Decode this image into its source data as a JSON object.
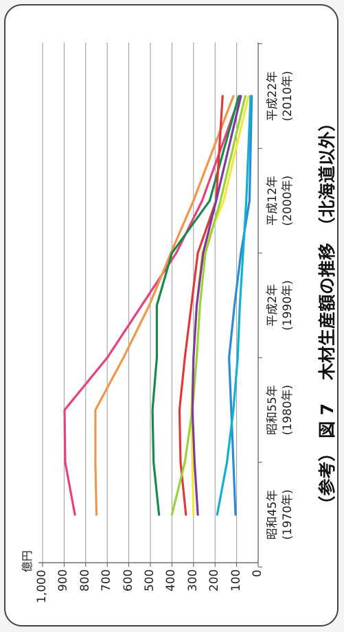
{
  "chart_data": {
    "type": "line",
    "title": "（参考） 図 7　 木材生産額の推移　（北海道以外）",
    "unit": "億円",
    "categories": [
      {
        "era": "昭和45年",
        "year": "(1970年)"
      },
      {
        "era": "昭和55年",
        "year": "(1980年)"
      },
      {
        "era": "平成2年",
        "year": "(1990年)"
      },
      {
        "era": "平成12年",
        "year": "(2000年)"
      },
      {
        "era": "平成22年",
        "year": "(2010年)"
      }
    ],
    "x": [
      1970,
      1975,
      1980,
      1985,
      1990,
      1995,
      2000,
      2010
    ],
    "ylim": [
      0,
      1000
    ],
    "yticks": [
      "0",
      "100",
      "200",
      "300",
      "400",
      "500",
      "600",
      "700",
      "800",
      "900",
      "1,000"
    ],
    "grid": true,
    "series": [
      {
        "color": "#e8407f",
        "values": [
          850,
          895,
          898,
          700,
          540,
          380,
          260,
          85
        ]
      },
      {
        "color": "#f0964a",
        "values": [
          750,
          755,
          755,
          625,
          505,
          405,
          300,
          115
        ]
      },
      {
        "color": "#178a4a",
        "values": [
          460,
          485,
          490,
          470,
          470,
          400,
          225,
          90
        ]
      },
      {
        "color": "#e03838",
        "values": [
          335,
          360,
          365,
          340,
          310,
          280,
          195,
          165
        ]
      },
      {
        "color": "#f2e83a",
        "values": [
          300,
          305,
          310,
          300,
          285,
          260,
          160,
          45
        ]
      },
      {
        "color": "#9bd13a",
        "values": [
          400,
          340,
          305,
          285,
          270,
          245,
          175,
          60
        ]
      },
      {
        "color": "#7a3aa0",
        "values": [
          280,
          295,
          305,
          300,
          285,
          255,
          195,
          80
        ]
      },
      {
        "color": "#2a8ad8",
        "values": [
          105,
          115,
          125,
          135,
          110,
          80,
          40,
          30
        ]
      },
      {
        "color": "#12b0d0",
        "values": [
          190,
          145,
          115,
          95,
          85,
          70,
          55,
          35
        ]
      }
    ]
  }
}
